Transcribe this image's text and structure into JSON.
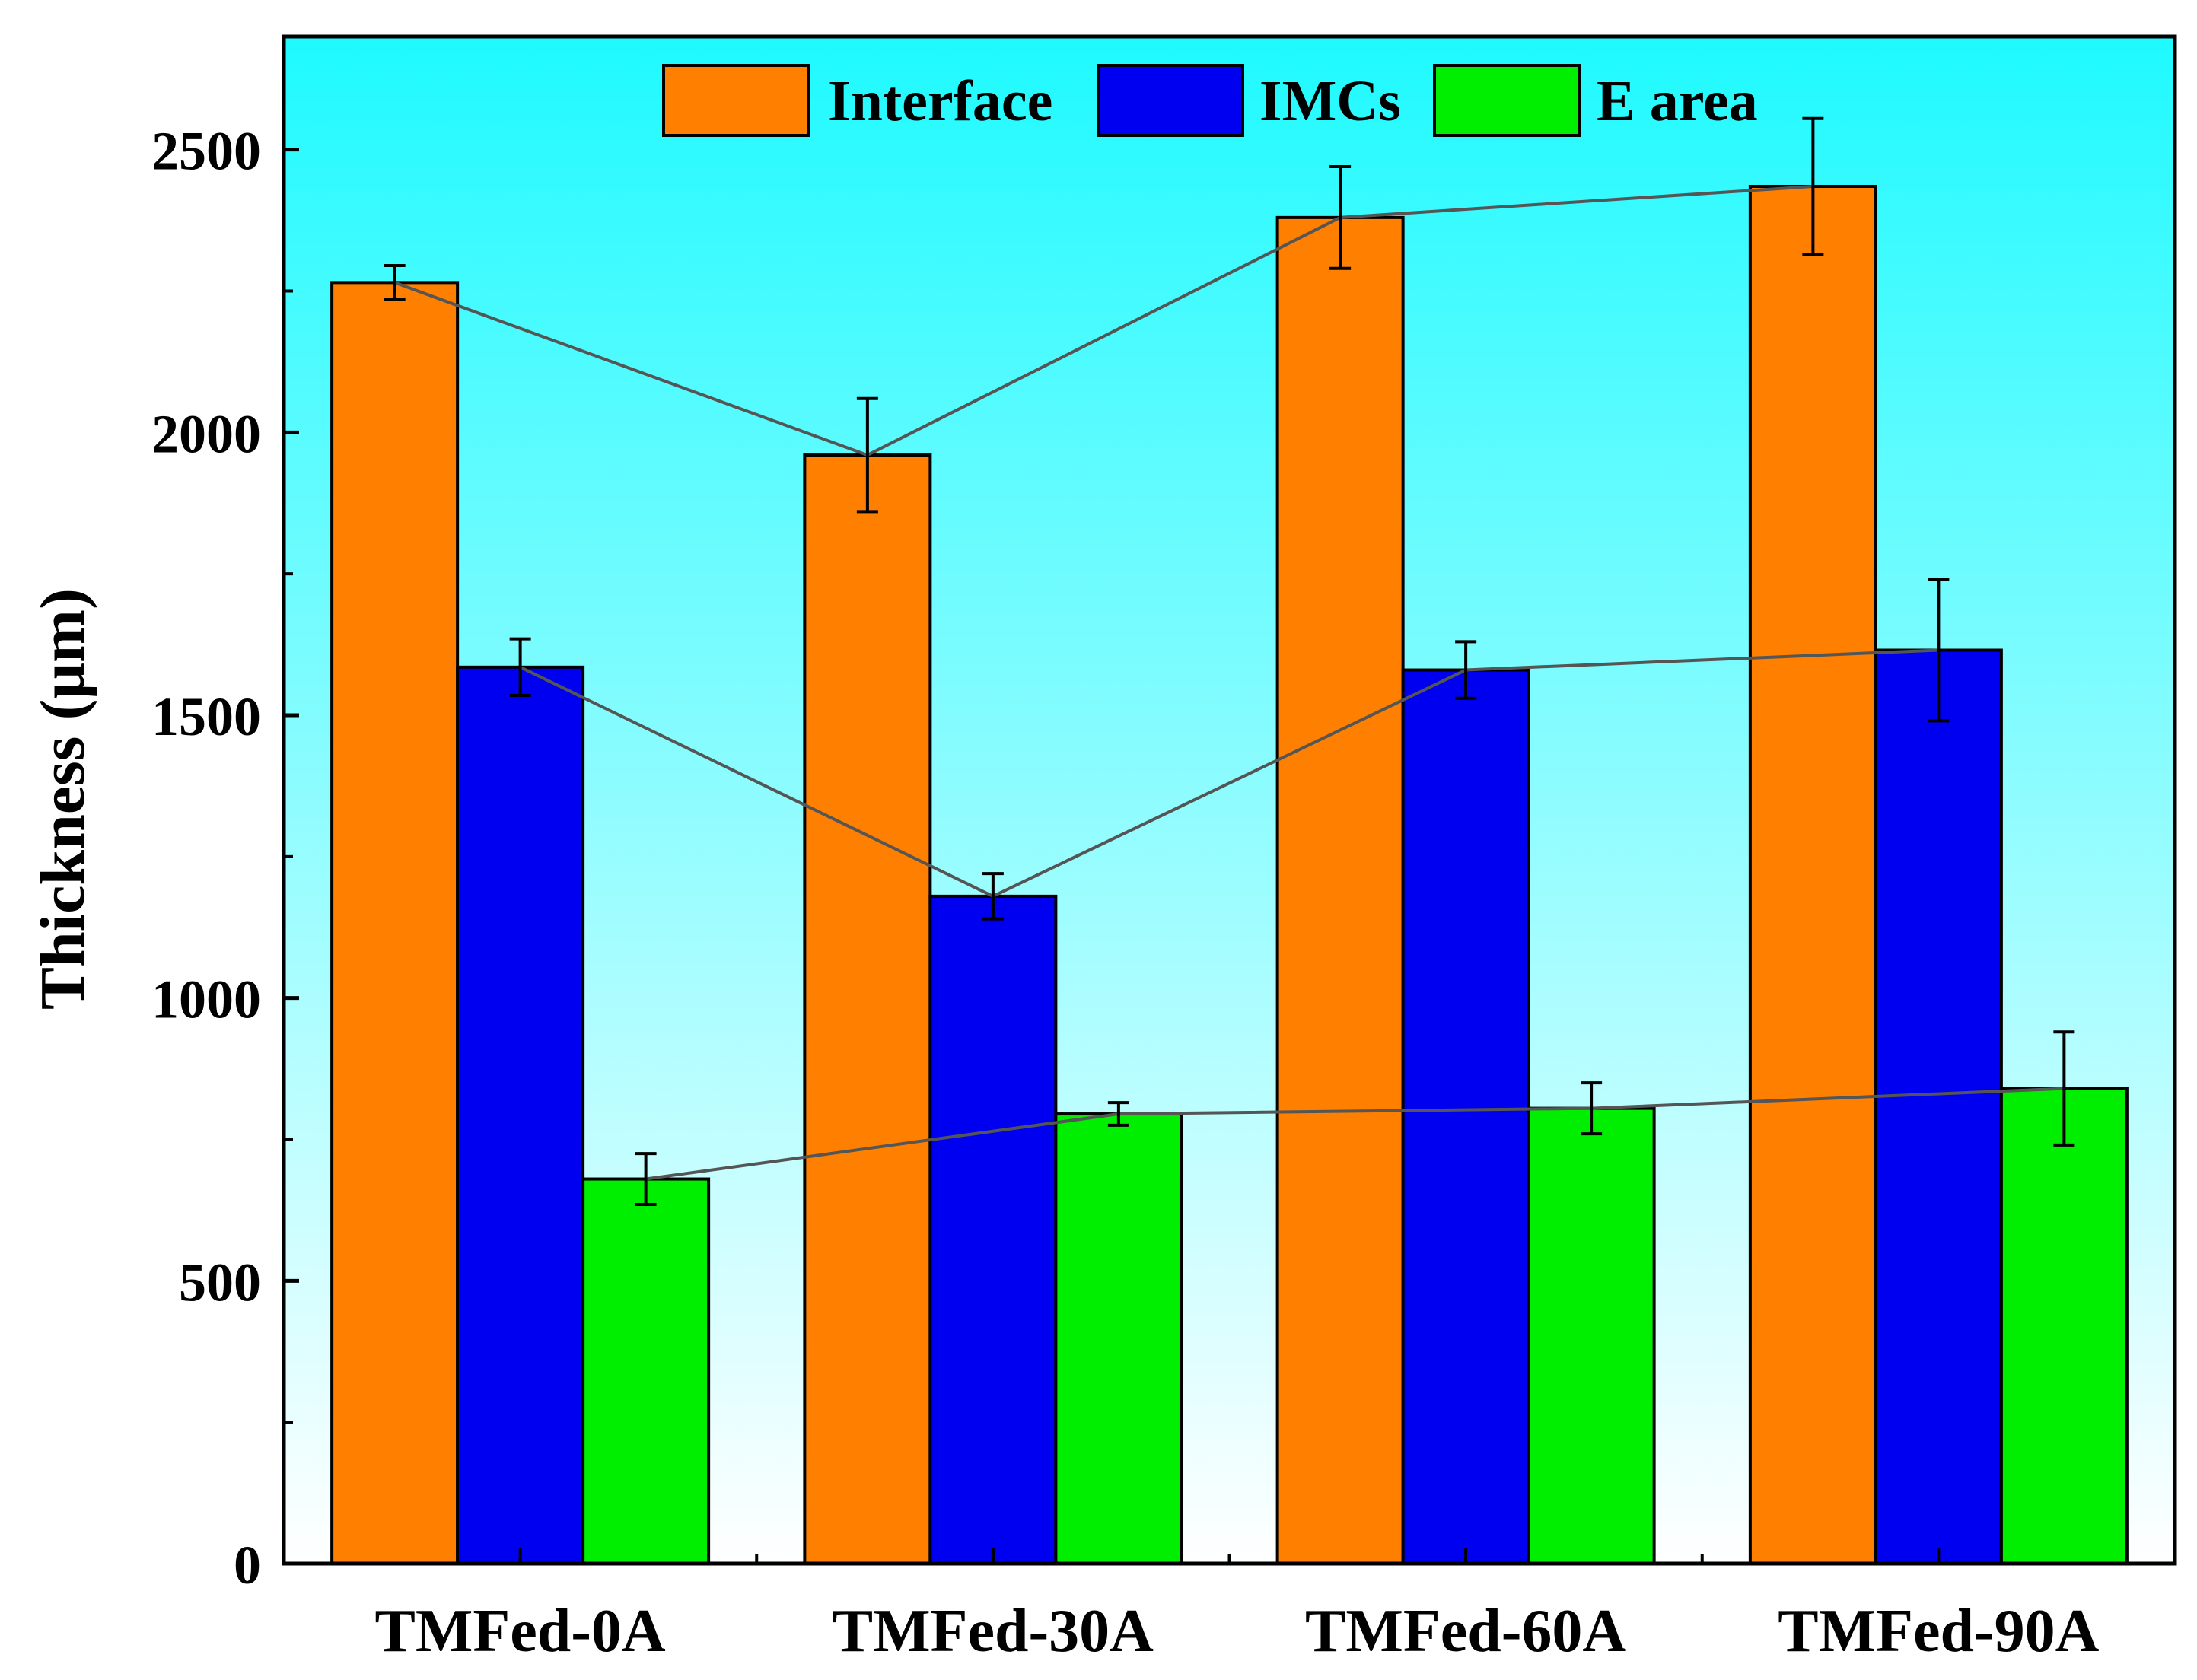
{
  "chart_data": {
    "type": "bar",
    "title": "",
    "xlabel": "",
    "ylabel": "Thickness (μm)",
    "ylim": [
      0,
      2700
    ],
    "yticks": [
      0,
      500,
      1000,
      1500,
      2000,
      2500
    ],
    "yminor_step": 250,
    "categories": [
      "TMFed-0A",
      "TMFed-30A",
      "TMFed-60A",
      "TMFed-90A"
    ],
    "series": [
      {
        "name": "Interface",
        "color": "#FF8000",
        "values": [
          2265,
          1960,
          2380,
          2435
        ],
        "errors": [
          30,
          100,
          90,
          120
        ]
      },
      {
        "name": "IMCs",
        "color": "#0000F0",
        "values": [
          1585,
          1180,
          1580,
          1615
        ],
        "errors": [
          50,
          40,
          50,
          125
        ]
      },
      {
        "name": "E area",
        "color": "#00EE00",
        "values": [
          680,
          795,
          805,
          840
        ],
        "errors": [
          45,
          20,
          45,
          100
        ]
      }
    ],
    "trend_lines": true,
    "legend_position": "top-center",
    "background_gradient": [
      "#1EFAFF",
      "#FFFFFF"
    ],
    "trend_line_color": "#555555"
  }
}
